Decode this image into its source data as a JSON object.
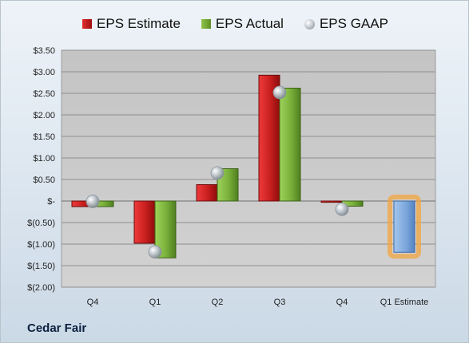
{
  "company": "Cedar Fair",
  "legend": {
    "estimate": "EPS Estimate",
    "actual": "EPS Actual",
    "gaap": "EPS GAAP"
  },
  "colors": {
    "estimate": "#c81f1f",
    "actual": "#78b03a",
    "gaap": "#bfc6ce",
    "forecast": "#7aa6db",
    "forecast_glow": "#f2a640",
    "plot_bg": "#c9c9c9"
  },
  "chart_data": {
    "type": "bar",
    "categories": [
      "Q4",
      "Q1",
      "Q2",
      "Q3",
      "Q4",
      "Q1 Estimate"
    ],
    "series": [
      {
        "name": "EPS Estimate",
        "values": [
          -0.13,
          -0.98,
          0.38,
          2.92,
          -0.03,
          null
        ]
      },
      {
        "name": "EPS Actual",
        "values": [
          -0.13,
          -1.32,
          0.75,
          2.62,
          -0.12,
          null
        ]
      },
      {
        "name": "EPS GAAP",
        "type": "scatter",
        "values": [
          -0.01,
          -1.18,
          0.65,
          2.52,
          -0.19,
          null
        ]
      }
    ],
    "forecast": {
      "category": "Q1 Estimate",
      "value": -1.19
    },
    "yticks": [
      "$3.50",
      "$3.00",
      "$2.50",
      "$2.00",
      "$1.50",
      "$1.00",
      "$0.50",
      "$-",
      "$(0.50)",
      "$(1.00)",
      "$(1.50)",
      "$(2.00)"
    ],
    "ylim": [
      -2.0,
      3.5
    ],
    "grid": true,
    "legend_position": "top-center",
    "xlabel": "",
    "ylabel": ""
  }
}
